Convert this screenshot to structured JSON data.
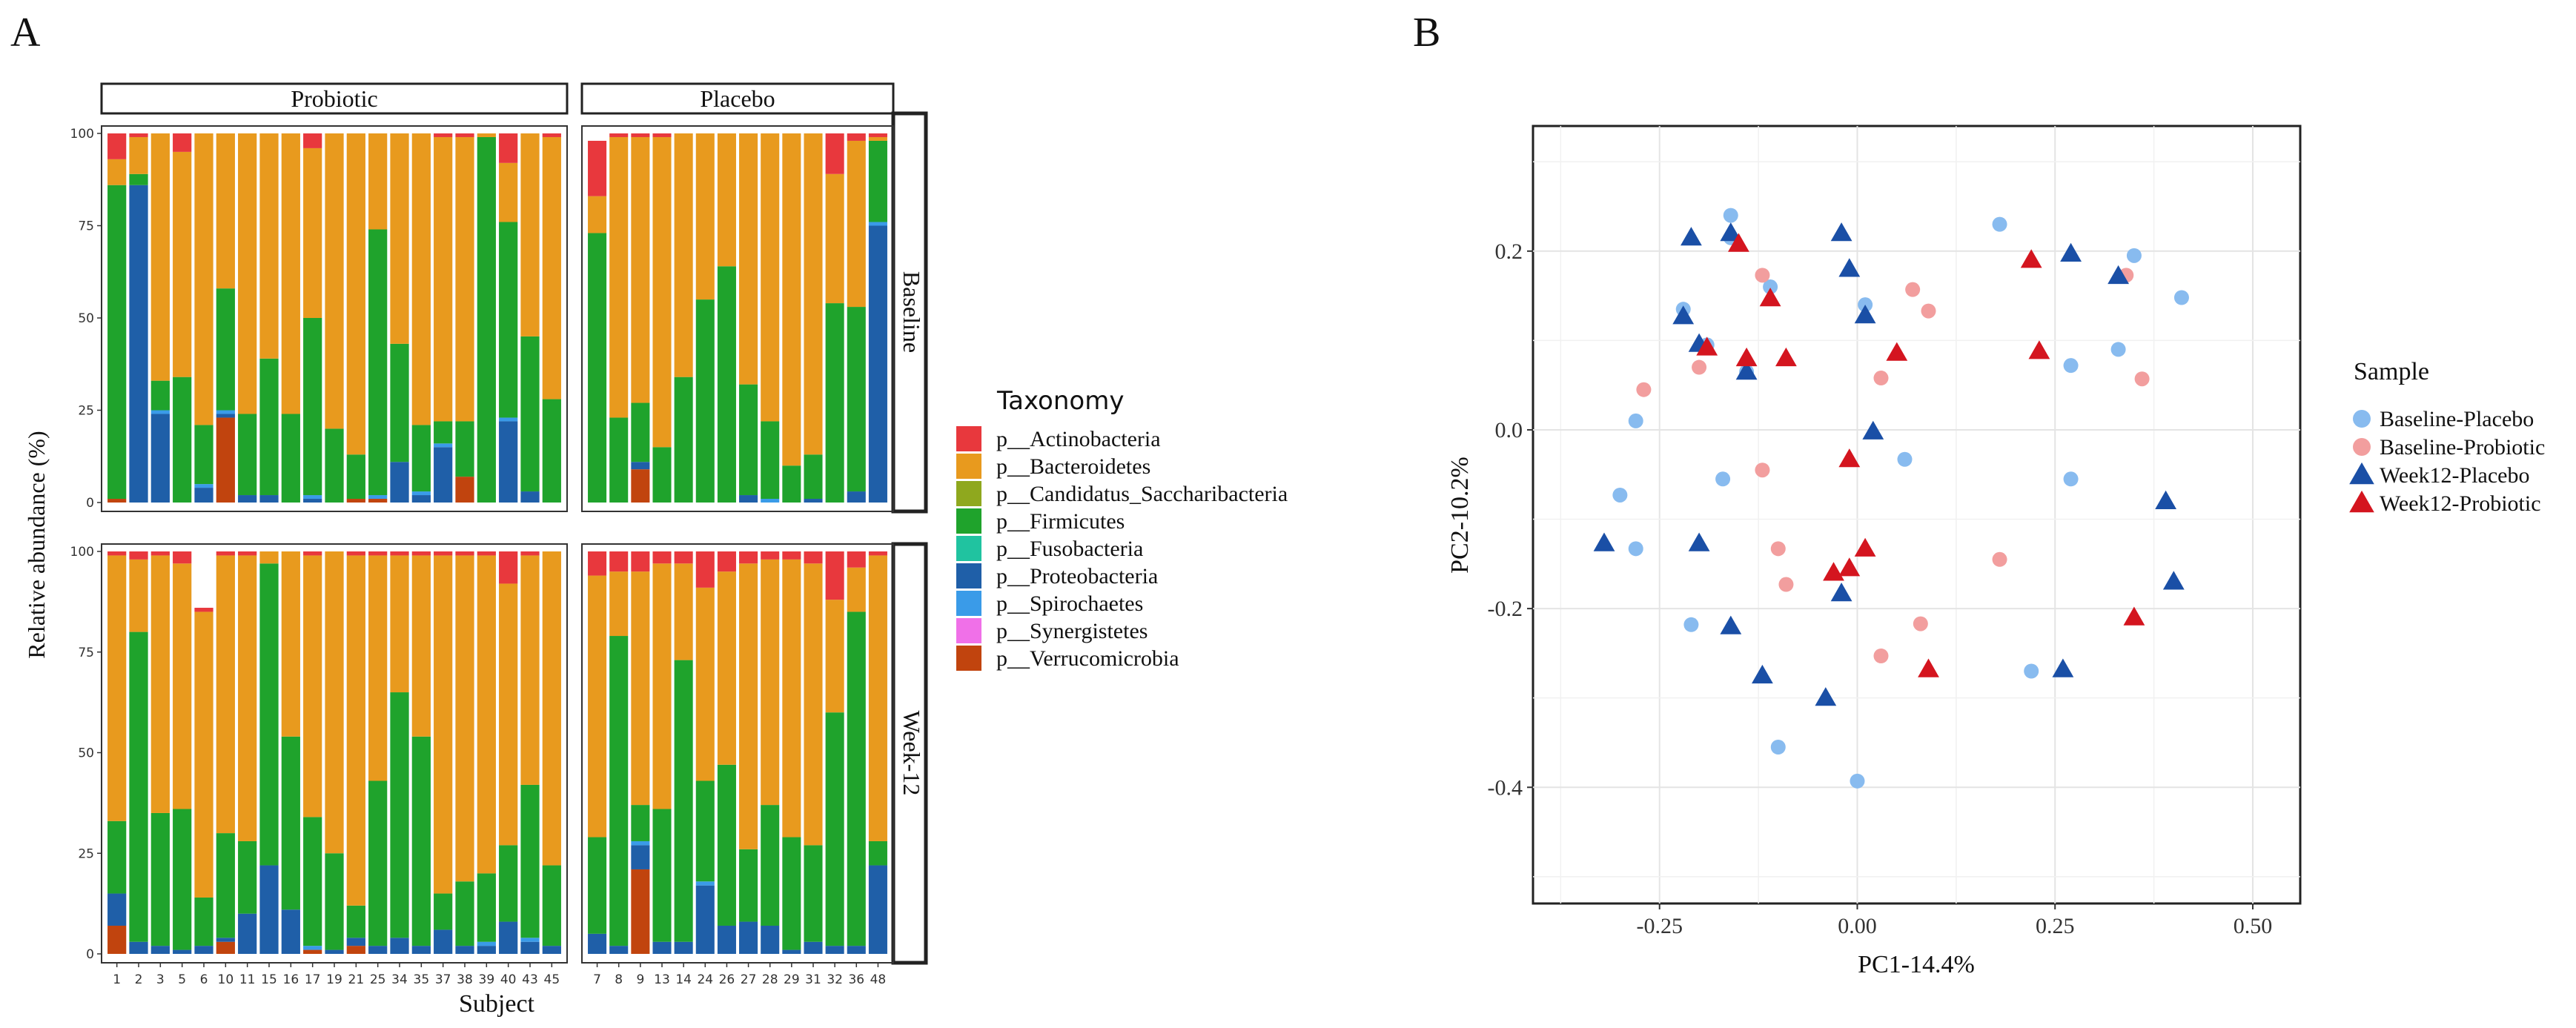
{
  "chart_data": [
    {
      "panel_label": "A",
      "type": "bar",
      "stacked": true,
      "title": "",
      "xlabel": "Subject",
      "ylabel": "Relative abundance (%)",
      "ylim": [
        0,
        100
      ],
      "yticks": [
        "0",
        "25",
        "50",
        "75",
        "100"
      ],
      "facet_columns": [
        "Probiotic",
        "Placebo"
      ],
      "facet_rows": [
        "Baseline",
        "Week-12"
      ],
      "legend_title": "Taxonomy",
      "legend": [
        {
          "label": "p__Actinobacteria",
          "color": "#E8383D"
        },
        {
          "label": "p__Bacteroidetes",
          "color": "#E89A1E"
        },
        {
          "label": "p__Candidatus_Saccharibacteria",
          "color": "#8FA81E"
        },
        {
          "label": "p__Firmicutes",
          "color": "#1FA32C"
        },
        {
          "label": "p__Fusobacteria",
          "color": "#20C3A0"
        },
        {
          "label": "p__Proteobacteria",
          "color": "#1F5FA8"
        },
        {
          "label": "p__Spirochaetes",
          "color": "#3A9BE8"
        },
        {
          "label": "p__Synergistetes",
          "color": "#F070E8"
        },
        {
          "label": "p__Verrucomicrobia",
          "color": "#C1440E"
        }
      ],
      "probiotic_subjects": [
        "1",
        "2",
        "3",
        "5",
        "6",
        "10",
        "11",
        "15",
        "16",
        "17",
        "19",
        "21",
        "25",
        "34",
        "35",
        "37",
        "38",
        "39",
        "40",
        "43",
        "45"
      ],
      "placebo_subjects": [
        "7",
        "8",
        "9",
        "13",
        "14",
        "24",
        "26",
        "27",
        "28",
        "29",
        "31",
        "32",
        "36",
        "48"
      ],
      "series_order": [
        "p__Verrucomicrobia",
        "p__Proteobacteria",
        "p__Spirochaetes",
        "p__Firmicutes",
        "p__Bacteroidetes",
        "p__Actinobacteria"
      ],
      "panels": [
        {
          "column": "Probiotic",
          "row": "Baseline",
          "values": {
            "p__Verrucomicrobia": [
              1,
              0,
              0,
              0,
              0,
              23,
              0,
              0,
              0,
              0,
              0,
              1,
              1,
              0,
              0,
              0,
              7,
              0,
              0,
              0,
              0
            ],
            "p__Proteobacteria": [
              0,
              86,
              24,
              0,
              4,
              1,
              2,
              2,
              0,
              1,
              0,
              0,
              0,
              11,
              2,
              15,
              0,
              0,
              22,
              3,
              0
            ],
            "p__Spirochaetes": [
              0,
              0,
              1,
              0,
              1,
              1,
              0,
              0,
              0,
              1,
              0,
              0,
              1,
              0,
              1,
              1,
              0,
              0,
              1,
              0,
              0
            ],
            "p__Firmicutes": [
              85,
              3,
              8,
              34,
              16,
              33,
              22,
              37,
              24,
              48,
              20,
              12,
              72,
              32,
              18,
              6,
              15,
              99,
              53,
              42,
              28
            ],
            "p__Bacteroidetes": [
              7,
              10,
              67,
              61,
              79,
              42,
              76,
              61,
              76,
              46,
              80,
              87,
              26,
              57,
              79,
              77,
              77,
              1,
              16,
              55,
              71
            ],
            "p__Actinobacteria": [
              7,
              1,
              0,
              5,
              0,
              0,
              0,
              0,
              0,
              4,
              0,
              0,
              0,
              0,
              0,
              1,
              1,
              0,
              8,
              0,
              1
            ]
          }
        },
        {
          "column": "Placebo",
          "row": "Baseline",
          "values": {
            "p__Verrucomicrobia": [
              0,
              0,
              9,
              0,
              0,
              0,
              0,
              0,
              0,
              0,
              0,
              0,
              0,
              0
            ],
            "p__Proteobacteria": [
              0,
              0,
              2,
              0,
              0,
              0,
              0,
              2,
              0,
              0,
              1,
              0,
              3,
              75
            ],
            "p__Spirochaetes": [
              0,
              0,
              0,
              0,
              0,
              0,
              0,
              0,
              1,
              0,
              0,
              0,
              0,
              1
            ],
            "p__Firmicutes": [
              73,
              23,
              16,
              15,
              34,
              55,
              64,
              30,
              21,
              10,
              12,
              54,
              50,
              22
            ],
            "p__Bacteroidetes": [
              10,
              76,
              72,
              84,
              66,
              45,
              36,
              68,
              78,
              90,
              87,
              35,
              45,
              1
            ],
            "p__Actinobacteria": [
              15,
              1,
              1,
              1,
              0,
              0,
              0,
              0,
              0,
              0,
              0,
              11,
              2,
              1
            ]
          }
        },
        {
          "column": "Probiotic",
          "row": "Week-12",
          "values": {
            "p__Verrucomicrobia": [
              7,
              0,
              0,
              0,
              0,
              3,
              0,
              0,
              0,
              1,
              0,
              2,
              0,
              0,
              0,
              0,
              0,
              0,
              0,
              0,
              0
            ],
            "p__Proteobacteria": [
              8,
              3,
              2,
              1,
              2,
              1,
              10,
              22,
              11,
              0,
              1,
              2,
              2,
              4,
              2,
              6,
              2,
              2,
              8,
              3,
              2
            ],
            "p__Spirochaetes": [
              0,
              0,
              0,
              0,
              0,
              0,
              0,
              0,
              0,
              1,
              0,
              0,
              0,
              0,
              0,
              0,
              0,
              1,
              0,
              1,
              0
            ],
            "p__Firmicutes": [
              18,
              77,
              33,
              35,
              12,
              26,
              18,
              75,
              43,
              32,
              24,
              8,
              41,
              61,
              52,
              9,
              16,
              17,
              19,
              38,
              20
            ],
            "p__Bacteroidetes": [
              66,
              18,
              64,
              61,
              71,
              69,
              71,
              3,
              46,
              65,
              75,
              87,
              56,
              34,
              45,
              84,
              81,
              79,
              65,
              57,
              78
            ],
            "p__Actinobacteria": [
              1,
              2,
              1,
              3,
              1,
              1,
              1,
              0,
              0,
              1,
              0,
              1,
              1,
              1,
              1,
              1,
              1,
              1,
              8,
              1,
              0
            ]
          }
        },
        {
          "column": "Placebo",
          "row": "Week-12",
          "values": {
            "p__Verrucomicrobia": [
              0,
              0,
              21,
              0,
              0,
              0,
              0,
              0,
              0,
              0,
              0,
              0,
              0,
              0
            ],
            "p__Proteobacteria": [
              5,
              2,
              6,
              3,
              3,
              17,
              7,
              8,
              7,
              1,
              3,
              2,
              2,
              22
            ],
            "p__Spirochaetes": [
              0,
              0,
              1,
              0,
              0,
              1,
              0,
              0,
              0,
              0,
              0,
              0,
              0,
              0
            ],
            "p__Firmicutes": [
              24,
              77,
              9,
              33,
              70,
              25,
              40,
              18,
              30,
              28,
              24,
              58,
              83,
              6
            ],
            "p__Bacteroidetes": [
              65,
              16,
              58,
              61,
              24,
              48,
              48,
              71,
              61,
              69,
              70,
              28,
              11,
              71
            ],
            "p__Actinobacteria": [
              6,
              5,
              5,
              3,
              3,
              9,
              5,
              3,
              2,
              2,
              3,
              12,
              4,
              1
            ]
          }
        }
      ]
    },
    {
      "panel_label": "B",
      "type": "scatter",
      "title": "",
      "xlabel": "PC1-14.4%",
      "ylabel": "PC2-10.2%",
      "xlim": [
        -0.41,
        0.56
      ],
      "ylim": [
        -0.53,
        0.34
      ],
      "xticks": [
        -0.25,
        0.0,
        0.25,
        0.5
      ],
      "xtick_labels": [
        "-0.25",
        "0.00",
        "0.25",
        "0.50"
      ],
      "yticks": [
        -0.4,
        -0.2,
        0.0,
        0.2
      ],
      "ytick_labels": [
        "-0.4",
        "-0.2",
        "0.0",
        "0.2"
      ],
      "grid": true,
      "legend_title": "Sample",
      "legend_position": "right",
      "series": [
        {
          "name": "Baseline-Placebo",
          "marker": "circle",
          "color": "#88BBEF",
          "points": [
            [
              -0.16,
              0.24
            ],
            [
              -0.16,
              0.215
            ],
            [
              -0.22,
              0.135
            ],
            [
              -0.11,
              0.16
            ],
            [
              0.18,
              0.23
            ],
            [
              0.35,
              0.195
            ],
            [
              0.41,
              0.148
            ],
            [
              0.01,
              0.14
            ],
            [
              0.33,
              0.09
            ],
            [
              0.27,
              0.072
            ],
            [
              -0.28,
              0.01
            ],
            [
              -0.14,
              0.065
            ],
            [
              -0.19,
              0.095
            ],
            [
              0.06,
              -0.033
            ],
            [
              -0.3,
              -0.073
            ],
            [
              -0.28,
              -0.133
            ],
            [
              -0.17,
              -0.055
            ],
            [
              0.27,
              -0.055
            ],
            [
              -0.21,
              -0.218
            ],
            [
              0.22,
              -0.27
            ],
            [
              -0.1,
              -0.355
            ],
            [
              0.0,
              -0.393
            ]
          ]
        },
        {
          "name": "Baseline-Probiotic",
          "marker": "circle",
          "color": "#F29E9E",
          "points": [
            [
              -0.12,
              0.173
            ],
            [
              0.07,
              0.157
            ],
            [
              0.09,
              0.133
            ],
            [
              -0.27,
              0.045
            ],
            [
              -0.2,
              0.07
            ],
            [
              0.03,
              0.058
            ],
            [
              0.36,
              0.057
            ],
            [
              0.34,
              0.173
            ],
            [
              -0.12,
              -0.045
            ],
            [
              -0.1,
              -0.133
            ],
            [
              -0.09,
              -0.173
            ],
            [
              0.18,
              -0.145
            ],
            [
              0.08,
              -0.217
            ],
            [
              0.03,
              -0.253
            ]
          ]
        },
        {
          "name": "Week12-Placebo",
          "marker": "triangle",
          "color": "#1A4FA6",
          "points": [
            [
              -0.21,
              0.215
            ],
            [
              -0.16,
              0.22
            ],
            [
              -0.02,
              0.22
            ],
            [
              0.27,
              0.197
            ],
            [
              0.33,
              0.172
            ],
            [
              -0.01,
              0.18
            ],
            [
              -0.22,
              0.127
            ],
            [
              0.01,
              0.128
            ],
            [
              -0.2,
              0.096
            ],
            [
              -0.14,
              0.065
            ],
            [
              0.02,
              -0.002
            ],
            [
              -0.32,
              -0.127
            ],
            [
              -0.2,
              -0.127
            ],
            [
              0.39,
              -0.08
            ],
            [
              0.4,
              -0.17
            ],
            [
              -0.16,
              -0.22
            ],
            [
              -0.12,
              -0.275
            ],
            [
              0.26,
              -0.268
            ],
            [
              -0.04,
              -0.3
            ],
            [
              -0.02,
              -0.183
            ]
          ]
        },
        {
          "name": "Week12-Probiotic",
          "marker": "triangle",
          "color": "#D4151F",
          "points": [
            [
              -0.15,
              0.208
            ],
            [
              0.22,
              0.19
            ],
            [
              -0.11,
              0.147
            ],
            [
              -0.19,
              0.092
            ],
            [
              -0.14,
              0.08
            ],
            [
              -0.09,
              0.08
            ],
            [
              0.05,
              0.086
            ],
            [
              0.23,
              0.088
            ],
            [
              -0.01,
              -0.033
            ],
            [
              0.01,
              -0.133
            ],
            [
              -0.03,
              -0.16
            ],
            [
              -0.01,
              -0.155
            ],
            [
              0.35,
              -0.21
            ],
            [
              0.09,
              -0.268
            ]
          ]
        }
      ]
    }
  ]
}
